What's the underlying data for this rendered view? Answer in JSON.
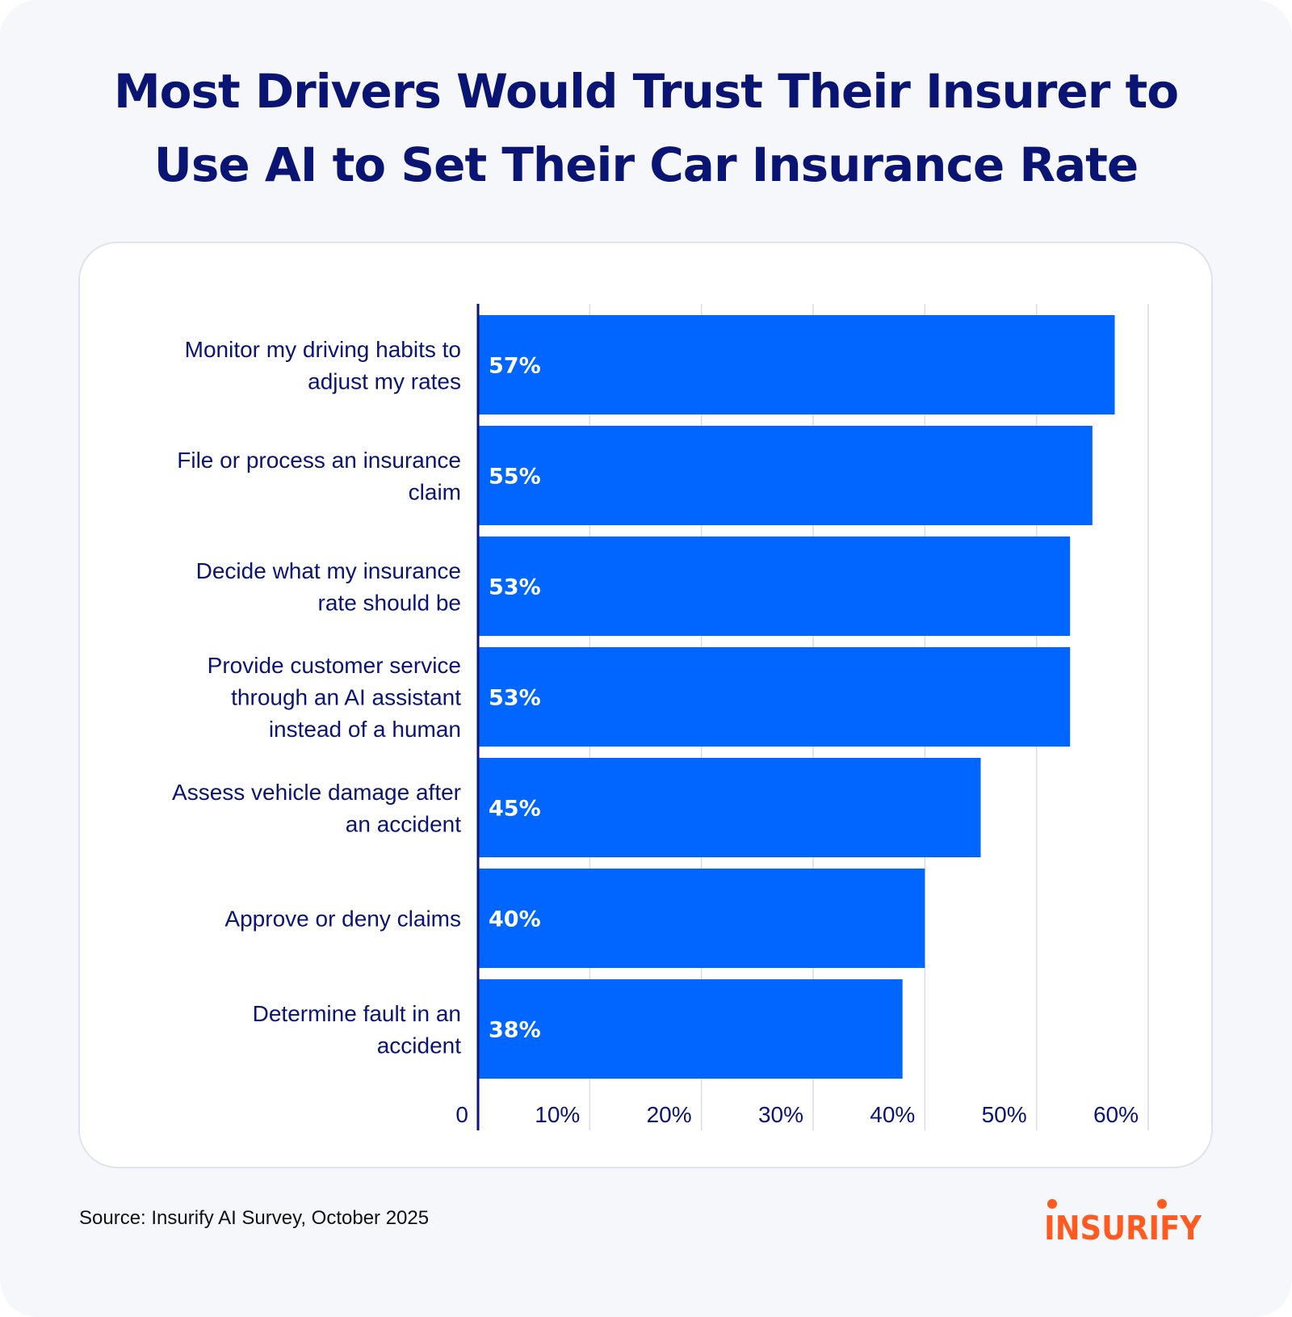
{
  "title_lines": [
    "Most Drivers Would Trust Their Insurer to",
    "Use AI to Set Their Car Insurance Rate"
  ],
  "source": "Source: Insurify AI Survey, October 2025",
  "brand": {
    "name": "INSURIFY",
    "color": "#ff5a1f"
  },
  "colors": {
    "bar": "#0066ff",
    "title": "#0a1473",
    "axis": "#0a1473",
    "grid": "#d9dce3"
  },
  "chart_data": {
    "type": "bar",
    "orientation": "horizontal",
    "categories": [
      [
        "Monitor my driving habits to",
        "adjust my rates"
      ],
      [
        "File or process an insurance",
        "claim"
      ],
      [
        "Decide what my insurance",
        "rate should be"
      ],
      [
        "Provide customer service",
        "through an AI assistant",
        "instead of a human"
      ],
      [
        "Assess vehicle damage after",
        "an accident"
      ],
      [
        "Approve or deny claims"
      ],
      [
        "Determine fault in an",
        "accident"
      ]
    ],
    "values": [
      57,
      55,
      53,
      53,
      45,
      40,
      38
    ],
    "value_labels": [
      "57%",
      "55%",
      "53%",
      "53%",
      "45%",
      "40%",
      "38%"
    ],
    "xlim": [
      0,
      60
    ],
    "xticks": [
      0,
      10,
      20,
      30,
      40,
      50,
      60
    ],
    "xtick_labels": [
      "0",
      "10%",
      "20%",
      "30%",
      "40%",
      "50%",
      "60%"
    ],
    "grid": true
  }
}
